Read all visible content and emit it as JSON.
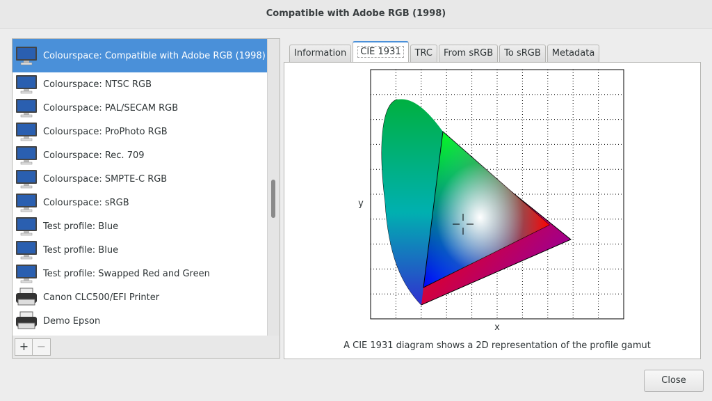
{
  "window": {
    "title": "Compatible with Adobe RGB (1998)"
  },
  "profiles": [
    {
      "label": "Colourspace: Compatible with Adobe RGB (1998)",
      "icon": "monitor-icon",
      "selected": true
    },
    {
      "label": "Colourspace: NTSC RGB",
      "icon": "monitor-icon"
    },
    {
      "label": "Colourspace: PAL/SECAM RGB",
      "icon": "monitor-icon"
    },
    {
      "label": "Colourspace: ProPhoto RGB",
      "icon": "monitor-icon"
    },
    {
      "label": "Colourspace: Rec. 709",
      "icon": "monitor-icon"
    },
    {
      "label": "Colourspace: SMPTE-C RGB",
      "icon": "monitor-icon"
    },
    {
      "label": "Colourspace: sRGB",
      "icon": "monitor-icon"
    },
    {
      "label": "Test profile: Blue",
      "icon": "monitor-icon"
    },
    {
      "label": "Test profile: Blue",
      "icon": "monitor-icon"
    },
    {
      "label": "Test profile: Swapped Red and Green",
      "icon": "monitor-icon"
    },
    {
      "label": "Canon CLC500/EFI Printer",
      "icon": "printer-icon"
    },
    {
      "label": "Demo Epson",
      "icon": "printer-icon"
    }
  ],
  "toolbar": {
    "add": "+",
    "remove": "−"
  },
  "tabs": [
    "Information",
    "CIE 1931",
    "TRC",
    "From sRGB",
    "To sRGB",
    "Metadata"
  ],
  "active_tab": 1,
  "diagram": {
    "xlabel": "x",
    "ylabel": "y",
    "caption": "A CIE 1931 diagram shows a 2D representation of the profile gamut"
  },
  "close_label": "Close"
}
